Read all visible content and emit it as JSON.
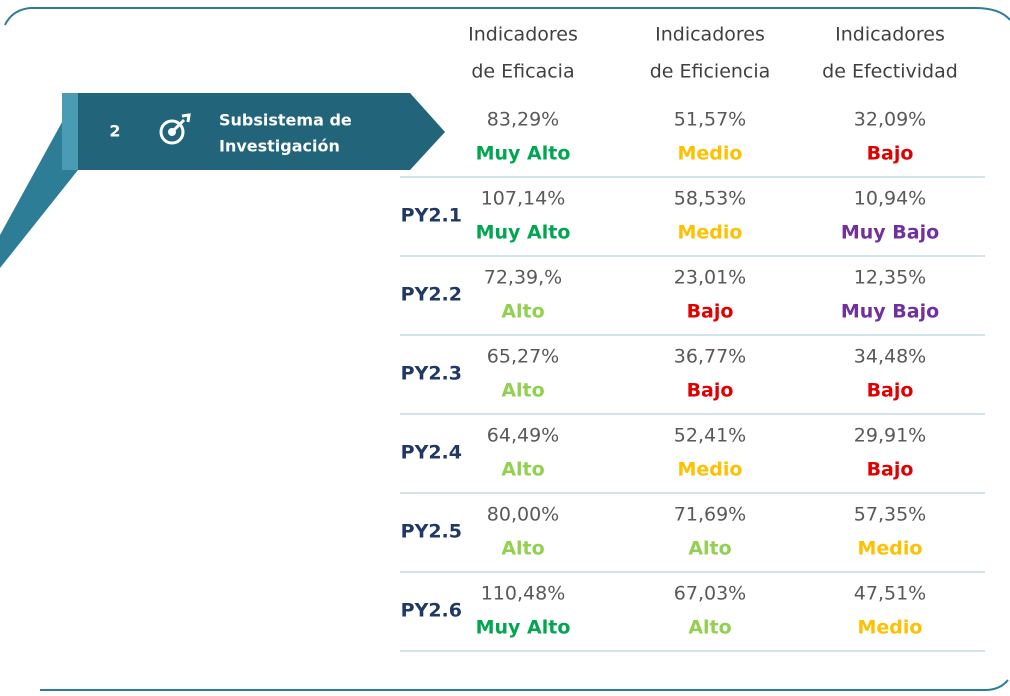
{
  "headers": [
    [
      "Indicadores",
      "de Eficacia"
    ],
    [
      "Indicadores",
      "de Eficiencia"
    ],
    [
      "Indicadores",
      "de Efectividad"
    ]
  ],
  "banner": {
    "number": "2",
    "title": [
      "Subsistema de",
      "Investigación"
    ]
  },
  "level_colors": {
    "Muy Alto": "#00a650",
    "Alto": "#92d050",
    "Medio": "#ffc000",
    "Bajo": "#e00000",
    "Muy Bajo": "#7030a0"
  },
  "summary": [
    {
      "value": "83,29%",
      "level": "Muy Alto"
    },
    {
      "value": "51,57%",
      "level": "Medio"
    },
    {
      "value": "32,09%",
      "level": "Bajo"
    }
  ],
  "rows": [
    {
      "label": "PY2.1",
      "cells": [
        {
          "value": "107,14%",
          "level": "Muy Alto"
        },
        {
          "value": "58,53%",
          "level": "Medio"
        },
        {
          "value": "10,94%",
          "level": "Muy Bajo"
        }
      ]
    },
    {
      "label": "PY2.2",
      "cells": [
        {
          "value": "72,39,%",
          "level": "Alto"
        },
        {
          "value": "23,01%",
          "level": "Bajo"
        },
        {
          "value": "12,35%",
          "level": "Muy Bajo"
        }
      ]
    },
    {
      "label": "PY2.3",
      "cells": [
        {
          "value": "65,27%",
          "level": "Alto"
        },
        {
          "value": "36,77%",
          "level": "Bajo"
        },
        {
          "value": "34,48%",
          "level": "Bajo"
        }
      ]
    },
    {
      "label": "PY2.4",
      "cells": [
        {
          "value": "64,49%",
          "level": "Alto"
        },
        {
          "value": "52,41%",
          "level": "Medio"
        },
        {
          "value": "29,91%",
          "level": "Bajo"
        }
      ]
    },
    {
      "label": "PY2.5",
      "cells": [
        {
          "value": "80,00%",
          "level": "Alto"
        },
        {
          "value": "71,69%",
          "level": "Alto"
        },
        {
          "value": "57,35%",
          "level": "Medio"
        }
      ]
    },
    {
      "label": "PY2.6",
      "cells": [
        {
          "value": "110,48%",
          "level": "Muy Alto"
        },
        {
          "value": "67,03%",
          "level": "Alto"
        },
        {
          "value": "47,51%",
          "level": "Medio"
        }
      ]
    }
  ]
}
